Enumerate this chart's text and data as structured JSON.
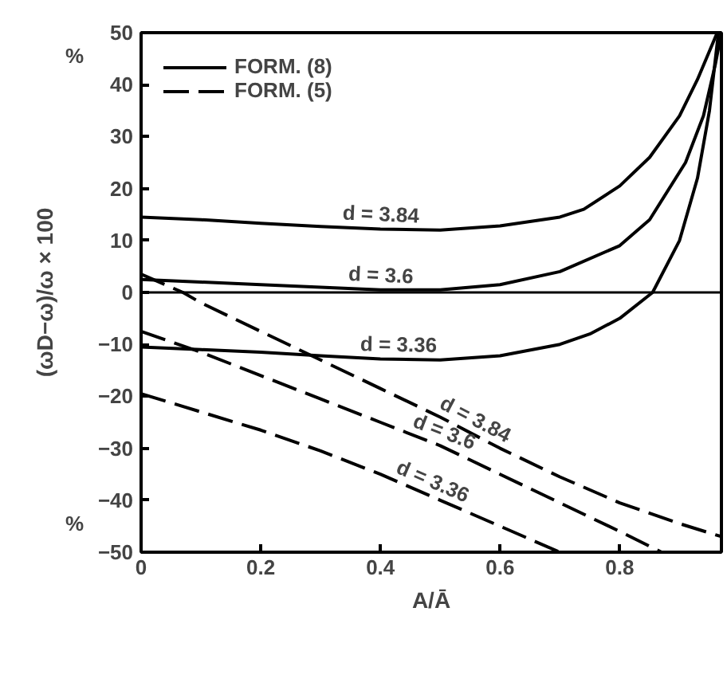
{
  "chart_data": {
    "type": "line",
    "xlabel": "A/Ā",
    "ylabel": "(ωD−ω)/ω × 100",
    "xlim": [
      0,
      0.97
    ],
    "ylim": [
      -50,
      50
    ],
    "xticks": [
      0,
      0.2,
      0.4,
      0.6,
      0.8
    ],
    "yticks": [
      -50,
      -40,
      -30,
      -20,
      -10,
      0,
      10,
      20,
      30,
      40,
      50
    ],
    "grid": false,
    "legend": "top left",
    "color": "#000000",
    "series": [
      {
        "name": "FORM. (8)",
        "line_style": "solid",
        "x": [
          0,
          0.1,
          0.2,
          0.3,
          0.4,
          0.5,
          0.6,
          0.7,
          0.74,
          0.8,
          0.85,
          0.9,
          0.93,
          0.963
        ],
        "values": [
          14.5,
          14,
          13.3,
          12.7,
          12.2,
          12,
          12.8,
          14.5,
          16,
          20.5,
          26,
          34,
          41,
          50
        ]
      },
      {
        "line_style": "solid",
        "x": [
          0,
          0.1,
          0.2,
          0.3,
          0.4,
          0.5,
          0.6,
          0.7,
          0.8,
          0.85,
          0.91,
          0.94,
          0.96,
          0.97
        ],
        "values": [
          2.5,
          2,
          1.5,
          1,
          0.5,
          0.5,
          1.5,
          4,
          9,
          14,
          25,
          34,
          44,
          50
        ]
      },
      {
        "line_style": "solid",
        "x": [
          0,
          0.1,
          0.2,
          0.3,
          0.4,
          0.5,
          0.6,
          0.7,
          0.75,
          0.8,
          0.855,
          0.9,
          0.93,
          0.95,
          0.965
        ],
        "values": [
          -10.5,
          -11,
          -11.5,
          -12.2,
          -12.8,
          -13,
          -12.2,
          -10,
          -8,
          -5,
          0,
          10,
          22,
          35,
          50
        ]
      },
      {
        "name": "FORM. (5)",
        "line_style": "dashed",
        "x": [
          0,
          0.07,
          0.1,
          0.2,
          0.3,
          0.4,
          0.5,
          0.6,
          0.7,
          0.8,
          0.9,
          0.97
        ],
        "values": [
          3.5,
          0,
          -2,
          -7.5,
          -13,
          -18.5,
          -24,
          -30,
          -35.5,
          -40.5,
          -44.5,
          -47
        ]
      },
      {
        "line_style": "dashed",
        "x": [
          0,
          0.1,
          0.2,
          0.3,
          0.4,
          0.5,
          0.6,
          0.7,
          0.8,
          0.87
        ],
        "values": [
          -7.5,
          -11.5,
          -16,
          -20.5,
          -25,
          -29.5,
          -35,
          -40.5,
          -46,
          -50
        ]
      },
      {
        "line_style": "dashed",
        "x": [
          0,
          0.1,
          0.2,
          0.3,
          0.4,
          0.5,
          0.6,
          0.7
        ],
        "values": [
          -19.5,
          -23,
          -26.5,
          -30.5,
          -35,
          -40,
          -45,
          -50
        ]
      }
    ],
    "ref_lines": [
      {
        "axis": "y",
        "value": 0,
        "color": "#000000"
      }
    ],
    "annotations": [
      {
        "text": "d = 3.84",
        "x": 0.4,
        "y": 12.2
      },
      {
        "text": "d = 3.6",
        "x": 0.4,
        "y": 0.5
      },
      {
        "text": "d = 3.36",
        "x": 0.43,
        "y": -12.9
      },
      {
        "text": "d = 3.84",
        "x": 0.55,
        "y": -27
      },
      {
        "text": "d = 3.6",
        "x": 0.5,
        "y": -29.5
      },
      {
        "text": "d = 3.36",
        "x": 0.48,
        "y": -39
      },
      "%",
      "%"
    ]
  }
}
